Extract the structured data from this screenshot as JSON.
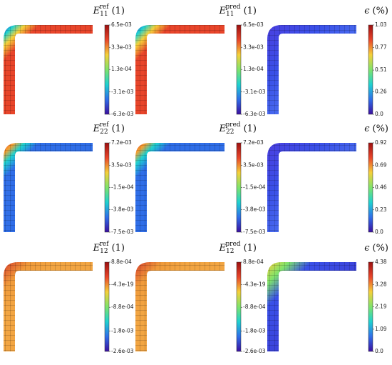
{
  "chart_data": [
    {
      "type": "contour",
      "title": {
        "symbol": "E",
        "sub": "11",
        "sup": "ref",
        "unit": "(1)"
      },
      "ylim": [
        -0.0063,
        0.0065
      ],
      "yticks": [
        {
          "value": 0.0065,
          "label": "6.5e-03"
        },
        {
          "value": 0.0033,
          "label": "3.3e-03"
        },
        {
          "value": 0.00013,
          "label": "1.3e-04"
        },
        {
          "value": -0.0031,
          "label": "-3.1e-03"
        },
        {
          "value": -0.0063,
          "label": "-6.3e-03"
        }
      ],
      "colormap": [
        "#3b0f9e",
        "#2f6ee8",
        "#1fd1d0",
        "#7fe36b",
        "#f5d03a",
        "#e8452a",
        "#9c1010"
      ]
    },
    {
      "type": "contour",
      "title": {
        "symbol": "E",
        "sub": "11",
        "sup": "pred",
        "unit": "(1)"
      },
      "ylim": [
        -0.0063,
        0.0065
      ],
      "yticks": [
        {
          "value": 0.0065,
          "label": "6.5e-03"
        },
        {
          "value": 0.0033,
          "label": "3.3e-03"
        },
        {
          "value": 0.00013,
          "label": "1.3e-04"
        },
        {
          "value": -0.0031,
          "label": "-3.1e-03"
        },
        {
          "value": -0.0063,
          "label": "-6.3e-03"
        }
      ],
      "colormap": [
        "#3b0f9e",
        "#2f6ee8",
        "#1fd1d0",
        "#7fe36b",
        "#f5d03a",
        "#e8452a",
        "#9c1010"
      ]
    },
    {
      "type": "contour",
      "title": {
        "symbol": "ϵ",
        "unit": "(%)"
      },
      "ylim": [
        0,
        1.03
      ],
      "yticks": [
        1.03,
        0.77,
        0.51,
        0.26,
        {
          "value": 0,
          "label": "0.0"
        }
      ],
      "colormap": [
        "#3b0f9e",
        "#2f6ee8",
        "#1fd1d0",
        "#7fe36b",
        "#f5d03a",
        "#e8452a",
        "#9c1010"
      ]
    },
    {
      "type": "contour",
      "title": {
        "symbol": "E",
        "sub": "22",
        "sup": "ref",
        "unit": "(1)"
      },
      "ylim": [
        -0.0075,
        0.0072
      ],
      "yticks": [
        {
          "value": 0.0072,
          "label": "7.2e-03"
        },
        {
          "value": 0.0035,
          "label": "3.5e-03"
        },
        {
          "value": -0.00015,
          "label": "-1.5e-04"
        },
        {
          "value": -0.0038,
          "label": "-3.8e-03"
        },
        {
          "value": -0.0075,
          "label": "-7.5e-03"
        }
      ],
      "colormap": [
        "#3b0f9e",
        "#2f6ee8",
        "#1fd1d0",
        "#7fe36b",
        "#f5d03a",
        "#e8452a",
        "#9c1010"
      ]
    },
    {
      "type": "contour",
      "title": {
        "symbol": "E",
        "sub": "22",
        "sup": "pred",
        "unit": "(1)"
      },
      "ylim": [
        -0.0075,
        0.0072
      ],
      "yticks": [
        {
          "value": 0.0072,
          "label": "7.2e-03"
        },
        {
          "value": 0.0035,
          "label": "3.5e-03"
        },
        {
          "value": -0.00015,
          "label": "-1.5e-04"
        },
        {
          "value": -0.0038,
          "label": "-3.8e-03"
        },
        {
          "value": -0.0075,
          "label": "-7.5e-03"
        }
      ],
      "colormap": [
        "#3b0f9e",
        "#2f6ee8",
        "#1fd1d0",
        "#7fe36b",
        "#f5d03a",
        "#e8452a",
        "#9c1010"
      ]
    },
    {
      "type": "contour",
      "title": {
        "symbol": "ϵ",
        "unit": "(%)"
      },
      "ylim": [
        0,
        0.92
      ],
      "yticks": [
        0.92,
        0.69,
        0.46,
        0.23,
        {
          "value": 0,
          "label": "0.0"
        }
      ],
      "colormap": [
        "#3b0f9e",
        "#2f6ee8",
        "#1fd1d0",
        "#7fe36b",
        "#f5d03a",
        "#e8452a",
        "#9c1010"
      ]
    },
    {
      "type": "contour",
      "title": {
        "symbol": "E",
        "sub": "12",
        "sup": "ref",
        "unit": "(1)"
      },
      "ylim": [
        -0.0026,
        0.00088
      ],
      "yticks": [
        {
          "value": 0.00088,
          "label": "8.8e-04"
        },
        {
          "value": -4.3e-19,
          "label": "-4.3e-19"
        },
        {
          "value": -0.00088,
          "label": "-8.8e-04"
        },
        {
          "value": -0.0018,
          "label": "-1.8e-03"
        },
        {
          "value": -0.0026,
          "label": "-2.6e-03"
        }
      ],
      "colormap": [
        "#3b0f9e",
        "#2f6ee8",
        "#1fd1d0",
        "#7fe36b",
        "#f5d03a",
        "#e8452a",
        "#9c1010"
      ]
    },
    {
      "type": "contour",
      "title": {
        "symbol": "E",
        "sub": "12",
        "sup": "pred",
        "unit": "(1)"
      },
      "ylim": [
        -0.0026,
        0.00088
      ],
      "yticks": [
        {
          "value": 0.00088,
          "label": "8.8e-04"
        },
        {
          "value": -4.3e-19,
          "label": "-4.3e-19"
        },
        {
          "value": -0.00088,
          "label": "-8.8e-04"
        },
        {
          "value": -0.0018,
          "label": "-1.8e-03"
        },
        {
          "value": -0.0026,
          "label": "-2.6e-03"
        }
      ],
      "colormap": [
        "#3b0f9e",
        "#2f6ee8",
        "#1fd1d0",
        "#7fe36b",
        "#f5d03a",
        "#e8452a",
        "#9c1010"
      ]
    },
    {
      "type": "contour",
      "title": {
        "symbol": "ϵ",
        "unit": "(%)"
      },
      "ylim": [
        0,
        4.38
      ],
      "yticks": [
        4.38,
        3.28,
        2.19,
        1.09,
        {
          "value": 0,
          "label": "0.0"
        }
      ],
      "colormap": [
        "#3b0f9e",
        "#2f6ee8",
        "#1fd1d0",
        "#7fe36b",
        "#f5d03a",
        "#e8452a",
        "#9c1010"
      ]
    }
  ]
}
